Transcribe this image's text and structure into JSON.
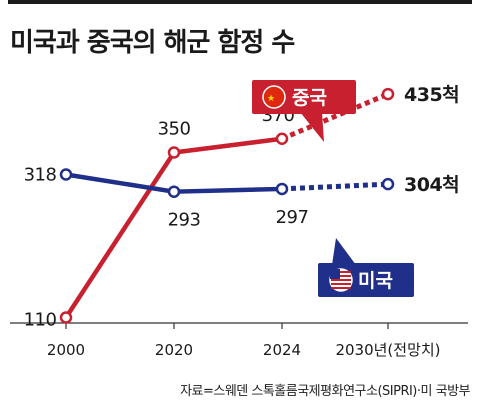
{
  "title": "미국과 중국의 해군 함정 수",
  "source": "자료=스웨덴 스톡홀름국제평화연구소(SIPRI)·미 국방부",
  "colors": {
    "china": "#c8202f",
    "usa": "#1f2f8a",
    "axis": "#333333"
  },
  "chart_data": {
    "type": "line",
    "categories": [
      "2000",
      "2020",
      "2024",
      "2030년(전망치)"
    ],
    "series": [
      {
        "name": "중국",
        "key": "china",
        "values": [
          110,
          350,
          370,
          435
        ],
        "labels": [
          "110",
          "350",
          "370",
          "435척"
        ],
        "projected_from_index": 2,
        "icon": "china-flag-icon"
      },
      {
        "name": "미국",
        "key": "usa",
        "values": [
          318,
          293,
          297,
          304
        ],
        "labels": [
          "318",
          "293",
          "297",
          "304척"
        ],
        "projected_from_index": 2,
        "icon": "usa-flag-icon"
      }
    ],
    "ylim": [
      70,
      470
    ],
    "grid": false,
    "legend": "callout labels"
  }
}
